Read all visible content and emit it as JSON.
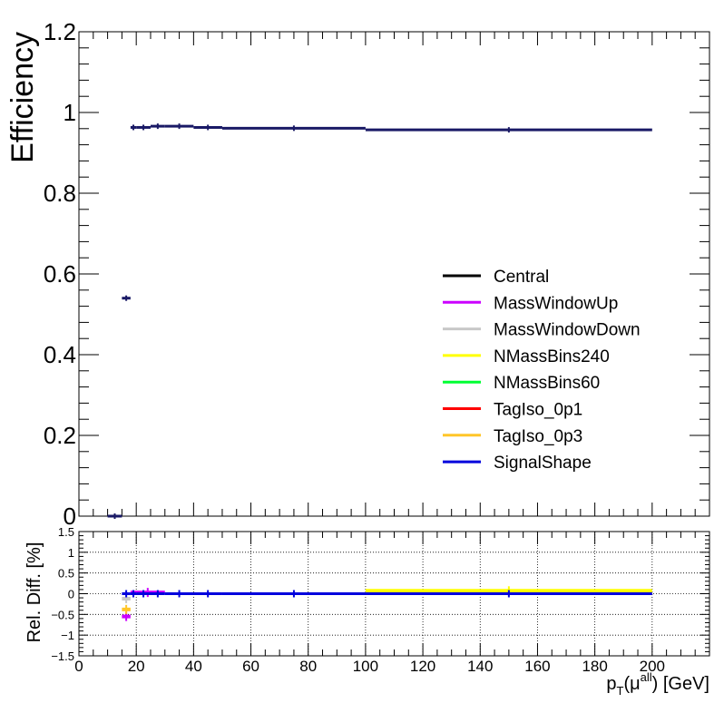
{
  "chart_data": [
    {
      "panel": "main",
      "type": "line",
      "ylabel": "Efficiency",
      "xlim": [
        0,
        220
      ],
      "ylim": [
        0,
        1.2
      ],
      "yticks": [
        "0",
        "0.2",
        "0.4",
        "0.6",
        "0.8",
        "1",
        "1.2"
      ],
      "bins": [
        {
          "xlo": 10,
          "xhi": 15,
          "y": 0.0
        },
        {
          "xlo": 15,
          "xhi": 18,
          "y": 0.54
        },
        {
          "xlo": 18,
          "xhi": 20,
          "y": 0.963
        },
        {
          "xlo": 20,
          "xhi": 25,
          "y": 0.963
        },
        {
          "xlo": 25,
          "xhi": 30,
          "y": 0.966
        },
        {
          "xlo": 30,
          "xhi": 40,
          "y": 0.966
        },
        {
          "xlo": 40,
          "xhi": 50,
          "y": 0.963
        },
        {
          "xlo": 50,
          "xhi": 100,
          "y": 0.961
        },
        {
          "xlo": 100,
          "xhi": 200,
          "y": 0.957
        }
      ],
      "series": [
        {
          "name": "Central",
          "color": "#000000"
        },
        {
          "name": "MassWindowUp",
          "color": "#cc00ff"
        },
        {
          "name": "MassWindowDown",
          "color": "#c8c8c8"
        },
        {
          "name": "NMassBins240",
          "color": "#ffff00"
        },
        {
          "name": "NMassBins60",
          "color": "#00ff33"
        },
        {
          "name": "TagIso_0p1",
          "color": "#ff0000"
        },
        {
          "name": "TagIso_0p3",
          "color": "#ffc629"
        },
        {
          "name": "SignalShape",
          "color": "#0000dd"
        }
      ],
      "legend_position": "right"
    },
    {
      "panel": "ratio",
      "type": "line",
      "ylabel": "Rel. Diff. [%]",
      "xlabel_base": "p",
      "xlabel_sub": "T",
      "xlabel_mu": "(μ",
      "xlabel_sup": "all",
      "xlabel_tail": ") [GeV]",
      "xlim": [
        0,
        220
      ],
      "ylim": [
        -1.5,
        1.5
      ],
      "grid": true,
      "xticks": [
        "0",
        "20",
        "40",
        "60",
        "80",
        "100",
        "120",
        "140",
        "160",
        "180",
        "200"
      ],
      "yticks": [
        "−1.5",
        "−1",
        "−0.5",
        "0",
        "0.5",
        "1",
        "1.5"
      ],
      "deviations": [
        {
          "series": "NMassBins240",
          "xlo": 100,
          "xhi": 200,
          "y": 0.07
        },
        {
          "series": "MassWindowUp",
          "xlo": 15,
          "xhi": 18,
          "y": -0.55
        },
        {
          "series": "TagIso_0p3",
          "xlo": 15,
          "xhi": 18,
          "y": -0.38
        },
        {
          "series": "MassWindowDown",
          "xlo": 15,
          "xhi": 18,
          "y": -0.12
        },
        {
          "series": "MassWindowUp",
          "xlo": 18,
          "xhi": 30,
          "y": 0.03
        }
      ],
      "baseline": 0
    }
  ]
}
